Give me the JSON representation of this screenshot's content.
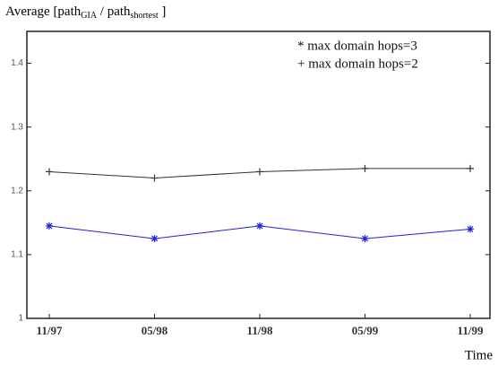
{
  "chart_data": {
    "type": "line",
    "title_parts": [
      "Average [path",
      "GIA",
      " / path",
      "shortest",
      " ]"
    ],
    "x_label": "Time",
    "categories": [
      "11/97",
      "05/98",
      "11/98",
      "05/99",
      "11/99"
    ],
    "series": [
      {
        "name": "* max domain hops=3",
        "color": "#2020e0",
        "marker": "*",
        "values": [
          1.145,
          1.125,
          1.145,
          1.125,
          1.14
        ]
      },
      {
        "name": "+ max domain hops=2",
        "color": "#333333",
        "marker": "+",
        "values": [
          1.23,
          1.22,
          1.23,
          1.235,
          1.235
        ]
      }
    ],
    "ylim": [
      1,
      1.45
    ],
    "yticks": [
      1,
      1.1,
      1.2,
      1.3,
      1.4
    ],
    "grid": false
  }
}
